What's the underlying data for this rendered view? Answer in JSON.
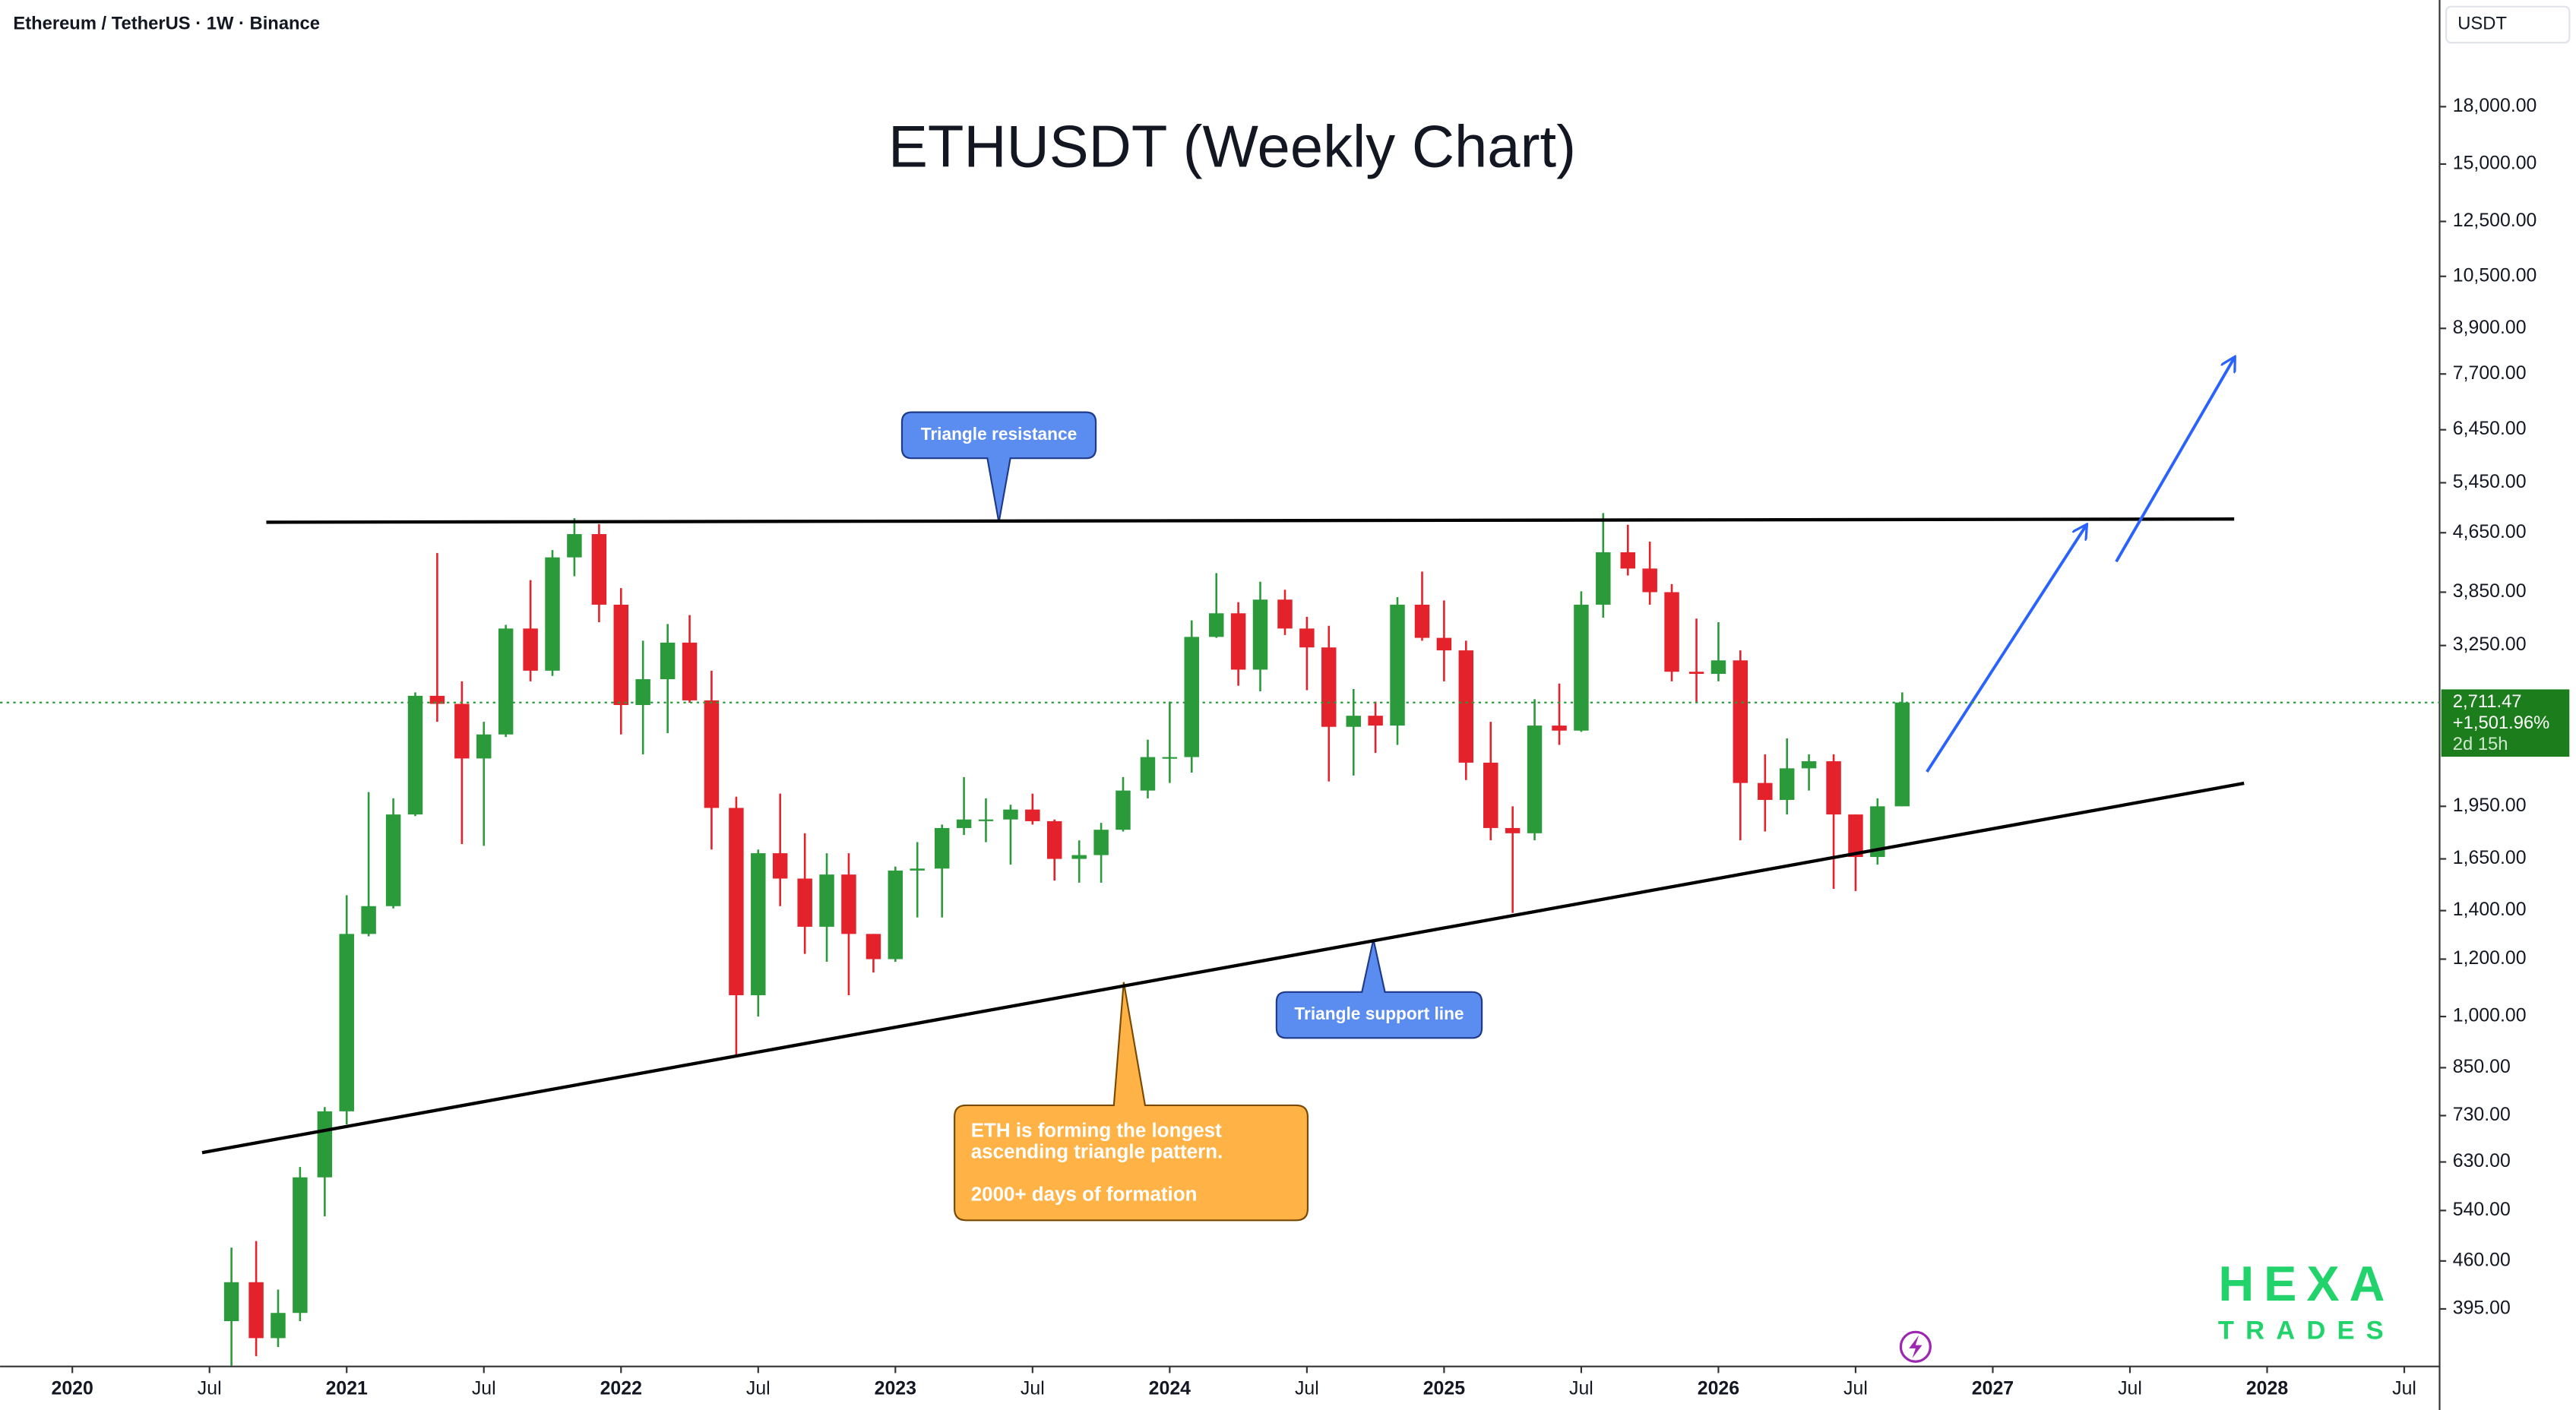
{
  "header": {
    "symbol": "Ethereum / TetherUS · 1W · Binance",
    "currency": "USDT"
  },
  "chart_data": {
    "type": "candlestick",
    "title": "ETHUSDT (Weekly Chart)",
    "log_scale": true,
    "up_color": "#2a9a3a",
    "down_color": "#e3222b",
    "x": [
      2020.58,
      2020.67,
      2020.75,
      2020.83,
      2020.92,
      2021.0,
      2021.08,
      2021.17,
      2021.25,
      2021.33,
      2021.42,
      2021.5,
      2021.58,
      2021.67,
      2021.75,
      2021.83,
      2021.92,
      2022.0,
      2022.08,
      2022.17,
      2022.25,
      2022.33,
      2022.42,
      2022.5,
      2022.58,
      2022.67,
      2022.75,
      2022.83,
      2022.92,
      2023.0,
      2023.08,
      2023.17,
      2023.25,
      2023.33,
      2023.42,
      2023.5,
      2023.58,
      2023.67,
      2023.75,
      2023.83,
      2023.92,
      2024.0,
      2024.08,
      2024.17,
      2024.25,
      2024.33,
      2024.42,
      2024.5,
      2024.58,
      2024.67,
      2024.75,
      2024.83,
      2024.92,
      2025.0,
      2025.08,
      2025.17,
      2025.25,
      2025.33,
      2025.42,
      2025.5,
      2025.58,
      2025.67,
      2025.75,
      2025.83,
      2025.92,
      2026.0,
      2026.08,
      2026.17,
      2026.25,
      2026.33,
      2026.42,
      2026.5,
      2026.58,
      2026.67
    ],
    "open": [
      380,
      430,
      360,
      390,
      600,
      740,
      1300,
      1420,
      1900,
      2770,
      2700,
      2270,
      2450,
      3430,
      3000,
      4300,
      4630,
      3700,
      2690,
      2920,
      3280,
      2730,
      1940,
      1070,
      1680,
      1550,
      1330,
      1570,
      1300,
      1200,
      1590,
      1600,
      1820,
      1870,
      1870,
      1930,
      1860,
      1650,
      1670,
      1810,
      2050,
      2280,
      2280,
      3340,
      3600,
      3010,
      3760,
      3430,
      3230,
      2510,
      2600,
      2520,
      3700,
      3330,
      3200,
      2240,
      1820,
      1790,
      2520,
      2480,
      3700,
      4370,
      4150,
      3850,
      2990,
      2970,
      3100,
      2100,
      1990,
      2200,
      2250,
      1900,
      1660,
      1950
    ],
    "high": [
      480,
      490,
      420,
      620,
      750,
      1470,
      2040,
      2000,
      2800,
      4360,
      2900,
      2550,
      3470,
      4000,
      4400,
      4870,
      4780,
      3900,
      3300,
      3480,
      3580,
      3000,
      2010,
      1700,
      2030,
      1790,
      1680,
      1680,
      1300,
      1610,
      1740,
      1840,
      2140,
      2000,
      1960,
      2030,
      1870,
      1750,
      1850,
      2140,
      2410,
      2720,
      3520,
      4090,
      3730,
      3980,
      3880,
      3560,
      3460,
      2830,
      2720,
      3790,
      4110,
      3750,
      3300,
      2550,
      1950,
      2740,
      2880,
      3860,
      4950,
      4770,
      4520,
      3950,
      3540,
      3500,
      3200,
      2300,
      2420,
      2300,
      2300,
      1900,
      2000,
      2800
    ],
    "low": [
      330,
      340,
      350,
      380,
      530,
      710,
      1290,
      1410,
      1890,
      2550,
      1730,
      1720,
      2430,
      2900,
      2950,
      4050,
      3500,
      2450,
      2300,
      2460,
      2710,
      1700,
      880,
      1000,
      1420,
      1220,
      1190,
      1070,
      1150,
      1190,
      1370,
      1370,
      1780,
      1740,
      1620,
      1840,
      1540,
      1530,
      1530,
      1800,
      2000,
      2100,
      2170,
      3330,
      2860,
      2810,
      3360,
      2820,
      2110,
      2150,
      2310,
      2370,
      3300,
      2900,
      2120,
      1750,
      1390,
      1750,
      2370,
      2470,
      3550,
      4060,
      3700,
      2900,
      2710,
      2900,
      1750,
      1800,
      1900,
      2050,
      1500,
      1490,
      1620,
      1950
    ],
    "close": [
      430,
      360,
      390,
      600,
      740,
      1300,
      1420,
      1900,
      2770,
      2700,
      2270,
      2450,
      3430,
      3000,
      4300,
      4630,
      3700,
      2690,
      2920,
      3280,
      2730,
      1940,
      1070,
      1680,
      1550,
      1330,
      1570,
      1300,
      1200,
      1590,
      1600,
      1820,
      1870,
      1870,
      1930,
      1860,
      1650,
      1670,
      1810,
      2050,
      2280,
      2280,
      3340,
      3600,
      3010,
      3760,
      3430,
      3230,
      2510,
      2600,
      2520,
      3700,
      3330,
      3200,
      2240,
      1820,
      1790,
      2520,
      2480,
      3700,
      4370,
      4150,
      3850,
      2990,
      2970,
      3100,
      2100,
      1990,
      2200,
      2250,
      1900,
      1660,
      1950,
      2711.47
    ],
    "xlim": [
      2019.7365,
      2028.6287
    ],
    "ylim": [
      329,
      25260
    ],
    "xticks": [
      2020,
      {
        "value": 2020.5,
        "label": "Jul"
      },
      2021,
      {
        "value": 2021.5,
        "label": "Jul"
      },
      2022,
      {
        "value": 2022.5,
        "label": "Jul"
      },
      2023,
      {
        "value": 2023.5,
        "label": "Jul"
      },
      2024,
      {
        "value": 2024.5,
        "label": "Jul"
      },
      2025,
      {
        "value": 2025.5,
        "label": "Jul"
      },
      2026,
      {
        "value": 2026.5,
        "label": "Jul"
      },
      2027,
      {
        "value": 2027.5,
        "label": "Jul"
      },
      2028,
      {
        "value": 2028.5,
        "label": "Jul"
      }
    ],
    "yticks": [
      {
        "value": 18000,
        "label": "18,000.00"
      },
      {
        "value": 15000,
        "label": "15,000.00"
      },
      {
        "value": 12500,
        "label": "12,500.00"
      },
      {
        "value": 10500,
        "label": "10,500.00"
      },
      {
        "value": 8900,
        "label": "8,900.00"
      },
      {
        "value": 7700,
        "label": "7,700.00"
      },
      {
        "value": 6450,
        "label": "6,450.00"
      },
      {
        "value": 5450,
        "label": "5,450.00"
      },
      {
        "value": 4650,
        "label": "4,650.00"
      },
      {
        "value": 3850,
        "label": "3,850.00"
      },
      {
        "value": 3250,
        "label": "3,250.00"
      },
      {
        "value": 1950,
        "label": "1,950.00"
      },
      {
        "value": 1650,
        "label": "1,650.00"
      },
      {
        "value": 1400,
        "label": "1,400.00"
      },
      {
        "value": 1200,
        "label": "1,200.00"
      },
      {
        "value": 1000,
        "label": "1,000.00"
      },
      {
        "value": 850,
        "label": "850.00"
      },
      {
        "value": 730,
        "label": "730.00"
      },
      {
        "value": 630,
        "label": "630.00"
      },
      {
        "value": 540,
        "label": "540.00"
      },
      {
        "value": 460,
        "label": "460.00"
      },
      {
        "value": 395,
        "label": "395.00"
      }
    ],
    "last_price_label": {
      "price": "2,711.47",
      "change": "+1,501.96%",
      "countdown": "2d 15h"
    },
    "trendlines": [
      {
        "x": [
          2020.707,
          2027.88
        ],
        "y": [
          4808,
          4857
        ]
      },
      {
        "x": [
          2020.473,
          2027.916
        ],
        "y": [
          649,
          2098
        ]
      }
    ],
    "arrows": [
      {
        "x": [
          2026.76,
          2027.34
        ],
        "y": [
          2176,
          4757
        ]
      },
      {
        "x": [
          2027.45,
          2027.88
        ],
        "y": [
          4242,
          8100
        ]
      }
    ],
    "annotations": {
      "resistance": "Triangle resistance",
      "support": "Triangle support line",
      "note": [
        "ETH is forming the longest",
        "ascending triangle pattern.",
        "2000+ days of formation"
      ]
    }
  },
  "logo": {
    "top": "HEXA",
    "bottom": "TRADES"
  }
}
